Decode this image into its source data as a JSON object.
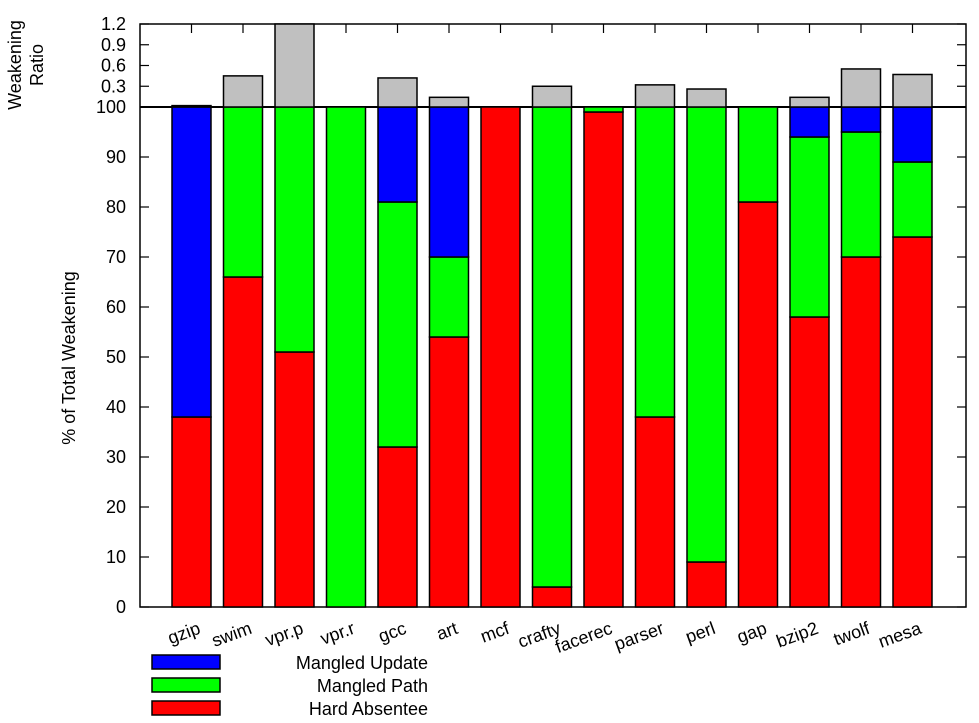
{
  "chart_data": {
    "type": "bar",
    "stacked": true,
    "categories": [
      "gzip",
      "swim",
      "vpr.p",
      "vpr.r",
      "gcc",
      "art",
      "mcf",
      "crafty",
      "facerec",
      "parser",
      "perl",
      "gap",
      "bzip2",
      "twolf",
      "mesa"
    ],
    "series": [
      {
        "name": "Hard Absentee",
        "color": "#ff0000",
        "values": [
          38,
          66,
          51,
          0,
          32,
          54,
          100,
          4,
          99,
          38,
          9,
          81,
          58,
          70,
          74
        ]
      },
      {
        "name": "Mangled Path",
        "color": "#00ff00",
        "values": [
          0,
          34,
          49,
          100,
          49,
          16,
          0,
          96,
          1,
          62,
          91,
          19,
          36,
          25,
          15
        ]
      },
      {
        "name": "Mangled Update",
        "color": "#0000ff",
        "values": [
          62,
          0,
          0,
          0,
          19,
          30,
          0,
          0,
          0,
          0,
          0,
          0,
          6,
          5,
          11
        ]
      }
    ],
    "weakening_ratio": {
      "color": "#c0c0c0",
      "values": [
        0.02,
        0.45,
        1.2,
        0,
        0.42,
        0.14,
        0,
        0.3,
        0,
        0.32,
        0.26,
        0,
        0.14,
        0.55,
        0.47
      ],
      "ylim": [
        0,
        1.2
      ],
      "ticks": [
        "0.3",
        "0.6",
        "0.9",
        "1.2"
      ],
      "ylabel_line1": "Weakening",
      "ylabel_line2": "Ratio"
    },
    "ylabel": "% of Total Weakening",
    "ylim": [
      0,
      100
    ],
    "yticks": [
      "0",
      "10",
      "20",
      "30",
      "40",
      "50",
      "60",
      "70",
      "80",
      "90",
      "100"
    ],
    "legend_order": [
      "Mangled Update",
      "Mangled Path",
      "Hard Absentee"
    ],
    "legend_position": "bottom-left"
  }
}
